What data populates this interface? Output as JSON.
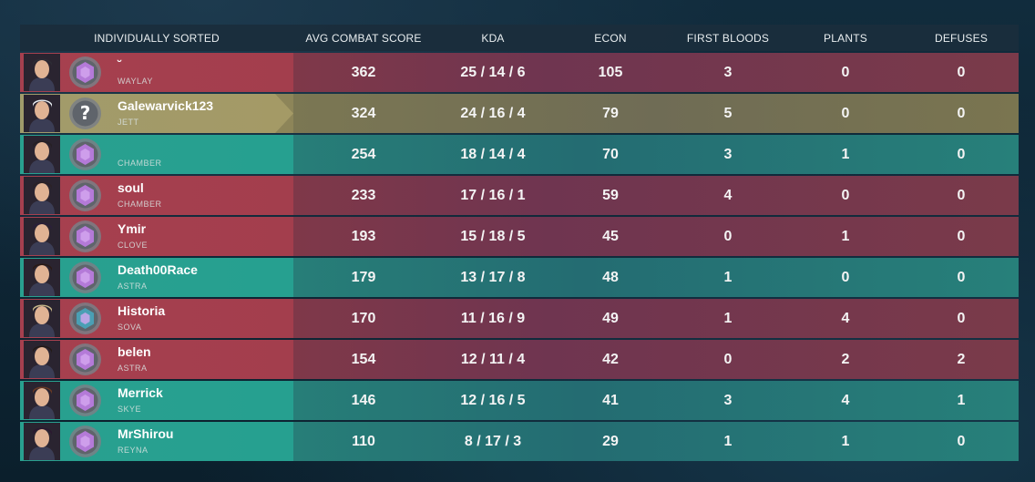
{
  "header": {
    "name": "INDIVIDUALLY SORTED",
    "acs": "AVG COMBAT SCORE",
    "kda": "KDA",
    "econ": "ECON",
    "first_bloods": "FIRST BLOODS",
    "plants": "PLANTS",
    "defuses": "DEFUSES"
  },
  "colors": {
    "red": "#8e3d4a",
    "teal": "#2b8d80",
    "gold": "#8d8559",
    "rank_purple": "#b47ad8",
    "rank_blue": "#4a9fb4"
  },
  "rows": [
    {
      "team": "red",
      "name": "˘",
      "agent": "WAYLAY",
      "rank_icon": "platinum-rank-icon",
      "acs": "362",
      "kda": "25 / 14 / 6",
      "econ": "105",
      "first_bloods": "3",
      "plants": "0",
      "defuses": "0"
    },
    {
      "team": "gold",
      "name": "Galewarvick123",
      "agent": "JETT",
      "rank_icon": "unranked-question-icon",
      "acs": "324",
      "kda": "24 / 16 / 4",
      "econ": "79",
      "first_bloods": "5",
      "plants": "0",
      "defuses": "0"
    },
    {
      "team": "teal",
      "name": "",
      "agent": "CHAMBER",
      "rank_icon": "platinum-rank-icon",
      "acs": "254",
      "kda": "18 / 14 / 4",
      "econ": "70",
      "first_bloods": "3",
      "plants": "1",
      "defuses": "0"
    },
    {
      "team": "red",
      "name": "soul",
      "agent": "CHAMBER",
      "rank_icon": "platinum-rank-icon",
      "acs": "233",
      "kda": "17 / 16 / 1",
      "econ": "59",
      "first_bloods": "4",
      "plants": "0",
      "defuses": "0"
    },
    {
      "team": "red",
      "name": "Ymir",
      "agent": "CLOVE",
      "rank_icon": "platinum-rank-icon",
      "acs": "193",
      "kda": "15 / 18 / 5",
      "econ": "45",
      "first_bloods": "0",
      "plants": "1",
      "defuses": "0"
    },
    {
      "team": "teal",
      "name": "Death00Race",
      "agent": "ASTRA",
      "rank_icon": "platinum-rank-icon",
      "acs": "179",
      "kda": "13 / 17 / 8",
      "econ": "48",
      "first_bloods": "1",
      "plants": "0",
      "defuses": "0"
    },
    {
      "team": "red",
      "name": "Historia",
      "agent": "SOVA",
      "rank_icon": "diamond-rank-icon",
      "acs": "170",
      "kda": "11 / 16 / 9",
      "econ": "49",
      "first_bloods": "1",
      "plants": "4",
      "defuses": "0"
    },
    {
      "team": "red",
      "name": "belen",
      "agent": "ASTRA",
      "rank_icon": "platinum-rank-icon",
      "acs": "154",
      "kda": "12 / 11 / 4",
      "econ": "42",
      "first_bloods": "0",
      "plants": "2",
      "defuses": "2"
    },
    {
      "team": "teal",
      "name": "Merrick",
      "agent": "SKYE",
      "rank_icon": "platinum-rank-icon",
      "acs": "146",
      "kda": "12 / 16 / 5",
      "econ": "41",
      "first_bloods": "3",
      "plants": "4",
      "defuses": "1"
    },
    {
      "team": "teal",
      "name": "MrShirou",
      "agent": "REYNA",
      "rank_icon": "platinum-rank-icon",
      "acs": "110",
      "kda": "8 / 17 / 3",
      "econ": "29",
      "first_bloods": "1",
      "plants": "1",
      "defuses": "0"
    }
  ]
}
